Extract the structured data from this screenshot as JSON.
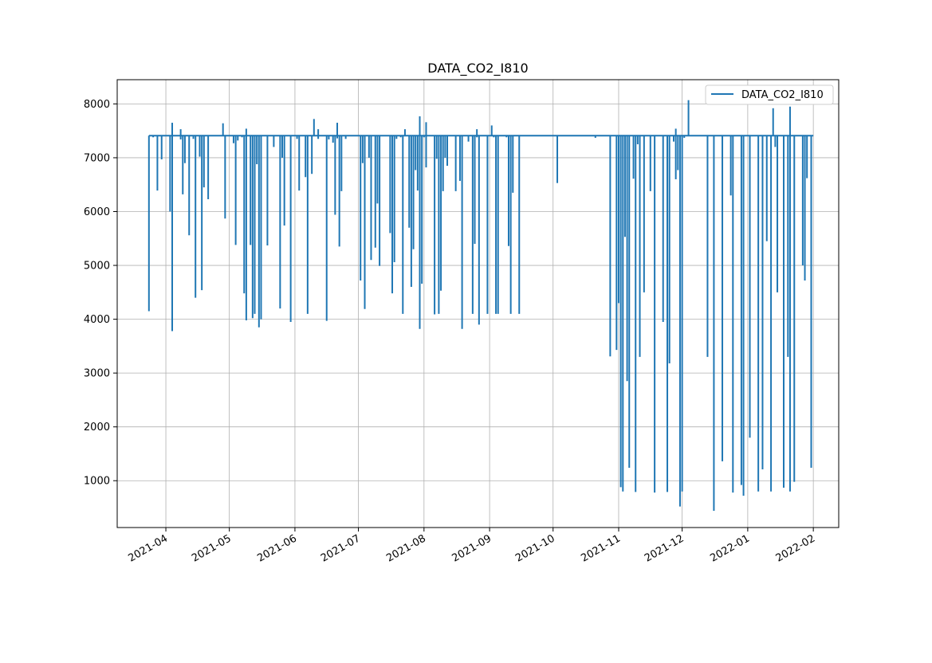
{
  "chart_data": {
    "type": "line",
    "title": "DATA_CO2_I810",
    "xlabel": "",
    "ylabel": "",
    "x_axis": {
      "scale": "date",
      "range": [
        "2021-03-09",
        "2022-02-13"
      ],
      "tick_labels": [
        "2021-04",
        "2021-05",
        "2021-06",
        "2021-07",
        "2021-08",
        "2021-09",
        "2021-10",
        "2021-11",
        "2021-12",
        "2022-01",
        "2022-02"
      ],
      "tick_dates": [
        "2021-04-01",
        "2021-05-01",
        "2021-06-01",
        "2021-07-01",
        "2021-08-01",
        "2021-09-01",
        "2021-10-01",
        "2021-11-01",
        "2021-12-01",
        "2022-01-01",
        "2022-02-01"
      ]
    },
    "y_axis": {
      "range": [
        130,
        8450
      ],
      "ticks": [
        1000,
        2000,
        3000,
        4000,
        5000,
        6000,
        7000,
        8000
      ],
      "tick_labels": [
        "1000",
        "2000",
        "3000",
        "4000",
        "5000",
        "6000",
        "7000",
        "8000"
      ]
    },
    "grid": true,
    "legend_position": "top-right",
    "series": [
      {
        "name": "DATA_CO2_I810",
        "color": "#1f77b4",
        "baseline": 7410,
        "x_range": [
          "2021-03-24",
          "2022-02-01"
        ],
        "dips": [
          [
            "2021-03-24",
            4150
          ],
          [
            "2021-03-26",
            7380
          ],
          [
            "2021-03-28",
            6390
          ],
          [
            "2021-03-30",
            6970
          ],
          [
            "2021-04-03",
            6000
          ],
          [
            "2021-04-04",
            3780
          ],
          [
            "2021-04-08",
            7340
          ],
          [
            "2021-04-09",
            6320
          ],
          [
            "2021-04-10",
            6900
          ],
          [
            "2021-04-12",
            5560
          ],
          [
            "2021-04-14",
            7350
          ],
          [
            "2021-04-15",
            4400
          ],
          [
            "2021-04-17",
            7020
          ],
          [
            "2021-04-18",
            4540
          ],
          [
            "2021-04-19",
            6450
          ],
          [
            "2021-04-21",
            6230
          ],
          [
            "2021-04-29",
            5870
          ],
          [
            "2021-05-03",
            7270
          ],
          [
            "2021-05-04",
            5380
          ],
          [
            "2021-05-05",
            7320
          ],
          [
            "2021-05-07",
            7380
          ],
          [
            "2021-05-08",
            4480
          ],
          [
            "2021-05-09",
            3980
          ],
          [
            "2021-05-11",
            5380
          ],
          [
            "2021-05-12",
            4020
          ],
          [
            "2021-05-13",
            4100
          ],
          [
            "2021-05-14",
            6880
          ],
          [
            "2021-05-15",
            3850
          ],
          [
            "2021-05-16",
            4000
          ],
          [
            "2021-05-19",
            5370
          ],
          [
            "2021-05-22",
            7200
          ],
          [
            "2021-05-25",
            4200
          ],
          [
            "2021-05-26",
            7000
          ],
          [
            "2021-05-27",
            5740
          ],
          [
            "2021-05-30",
            3950
          ],
          [
            "2021-06-02",
            7350
          ],
          [
            "2021-06-03",
            6390
          ],
          [
            "2021-06-06",
            6640
          ],
          [
            "2021-06-07",
            4100
          ],
          [
            "2021-06-09",
            6700
          ],
          [
            "2021-06-12",
            7350
          ],
          [
            "2021-06-16",
            3970
          ],
          [
            "2021-06-17",
            7340
          ],
          [
            "2021-06-19",
            7280
          ],
          [
            "2021-06-20",
            5940
          ],
          [
            "2021-06-21",
            7360
          ],
          [
            "2021-06-22",
            5350
          ],
          [
            "2021-06-23",
            6380
          ],
          [
            "2021-06-25",
            7350
          ],
          [
            "2021-07-02",
            4720
          ],
          [
            "2021-07-03",
            6900
          ],
          [
            "2021-07-04",
            4190
          ],
          [
            "2021-07-06",
            7000
          ],
          [
            "2021-07-07",
            5100
          ],
          [
            "2021-07-09",
            5330
          ],
          [
            "2021-07-10",
            6150
          ],
          [
            "2021-07-11",
            4990
          ],
          [
            "2021-07-16",
            5600
          ],
          [
            "2021-07-17",
            4480
          ],
          [
            "2021-07-18",
            5060
          ],
          [
            "2021-07-19",
            7350
          ],
          [
            "2021-07-21",
            7380
          ],
          [
            "2021-07-22",
            4100
          ],
          [
            "2021-07-25",
            5700
          ],
          [
            "2021-07-26",
            4600
          ],
          [
            "2021-07-27",
            5300
          ],
          [
            "2021-07-28",
            6770
          ],
          [
            "2021-07-29",
            6390
          ],
          [
            "2021-07-30",
            3820
          ],
          [
            "2021-07-31",
            4660
          ],
          [
            "2021-08-01",
            7380
          ],
          [
            "2021-08-02",
            6820
          ],
          [
            "2021-08-06",
            4090
          ],
          [
            "2021-08-07",
            6980
          ],
          [
            "2021-08-08",
            4100
          ],
          [
            "2021-08-09",
            4530
          ],
          [
            "2021-08-10",
            6380
          ],
          [
            "2021-08-11",
            7000
          ],
          [
            "2021-08-12",
            6850
          ],
          [
            "2021-08-16",
            6380
          ],
          [
            "2021-08-18",
            6570
          ],
          [
            "2021-08-19",
            3820
          ],
          [
            "2021-08-22",
            7300
          ],
          [
            "2021-08-24",
            4100
          ],
          [
            "2021-08-25",
            5400
          ],
          [
            "2021-08-26",
            7380
          ],
          [
            "2021-08-27",
            3900
          ],
          [
            "2021-08-31",
            4100
          ],
          [
            "2021-09-03",
            7380
          ],
          [
            "2021-09-04",
            4100
          ],
          [
            "2021-09-05",
            4100
          ],
          [
            "2021-09-09",
            7380
          ],
          [
            "2021-09-10",
            5360
          ],
          [
            "2021-09-11",
            4100
          ],
          [
            "2021-09-12",
            6350
          ],
          [
            "2021-09-15",
            4100
          ],
          [
            "2021-10-03",
            6530
          ],
          [
            "2021-10-21",
            7370
          ],
          [
            "2021-10-28",
            3310
          ],
          [
            "2021-10-31",
            3430
          ],
          [
            "2021-11-01",
            4300
          ],
          [
            "2021-11-02",
            880
          ],
          [
            "2021-11-03",
            800
          ],
          [
            "2021-11-04",
            5530
          ],
          [
            "2021-11-05",
            2850
          ],
          [
            "2021-11-06",
            1240
          ],
          [
            "2021-11-08",
            6610
          ],
          [
            "2021-11-09",
            790
          ],
          [
            "2021-11-10",
            7250
          ],
          [
            "2021-11-11",
            3300
          ],
          [
            "2021-11-13",
            4500
          ],
          [
            "2021-11-16",
            6380
          ],
          [
            "2021-11-18",
            780
          ],
          [
            "2021-11-22",
            3950
          ],
          [
            "2021-11-24",
            790
          ],
          [
            "2021-11-25",
            3180
          ],
          [
            "2021-11-27",
            7300
          ],
          [
            "2021-11-28",
            6600
          ],
          [
            "2021-11-29",
            6770
          ],
          [
            "2021-11-30",
            520
          ],
          [
            "2021-12-01",
            800
          ],
          [
            "2021-12-02",
            7370
          ],
          [
            "2021-12-13",
            3300
          ],
          [
            "2021-12-16",
            440
          ],
          [
            "2021-12-20",
            1360
          ],
          [
            "2021-12-24",
            6300
          ],
          [
            "2021-12-25",
            780
          ],
          [
            "2021-12-29",
            920
          ],
          [
            "2021-12-30",
            720
          ],
          [
            "2022-01-02",
            1800
          ],
          [
            "2022-01-06",
            800
          ],
          [
            "2022-01-08",
            1210
          ],
          [
            "2022-01-10",
            5450
          ],
          [
            "2022-01-12",
            800
          ],
          [
            "2022-01-14",
            7200
          ],
          [
            "2022-01-15",
            4500
          ],
          [
            "2022-01-18",
            870
          ],
          [
            "2022-01-20",
            3300
          ],
          [
            "2022-01-21",
            800
          ],
          [
            "2022-01-23",
            980
          ],
          [
            "2022-01-27",
            5000
          ],
          [
            "2022-01-28",
            4720
          ],
          [
            "2022-01-29",
            6620
          ],
          [
            "2022-01-31",
            1240
          ]
        ],
        "spikes": [
          [
            "2021-04-04",
            7650
          ],
          [
            "2021-04-08",
            7530
          ],
          [
            "2021-04-28",
            7640
          ],
          [
            "2021-05-09",
            7540
          ],
          [
            "2021-06-10",
            7720
          ],
          [
            "2021-06-12",
            7530
          ],
          [
            "2021-06-21",
            7650
          ],
          [
            "2021-07-23",
            7530
          ],
          [
            "2021-07-30",
            7770
          ],
          [
            "2021-08-02",
            7660
          ],
          [
            "2021-08-26",
            7530
          ],
          [
            "2021-09-02",
            7600
          ],
          [
            "2021-11-28",
            7540
          ],
          [
            "2021-12-04",
            8070
          ],
          [
            "2022-01-13",
            7920
          ],
          [
            "2022-01-21",
            7950
          ]
        ]
      }
    ]
  }
}
